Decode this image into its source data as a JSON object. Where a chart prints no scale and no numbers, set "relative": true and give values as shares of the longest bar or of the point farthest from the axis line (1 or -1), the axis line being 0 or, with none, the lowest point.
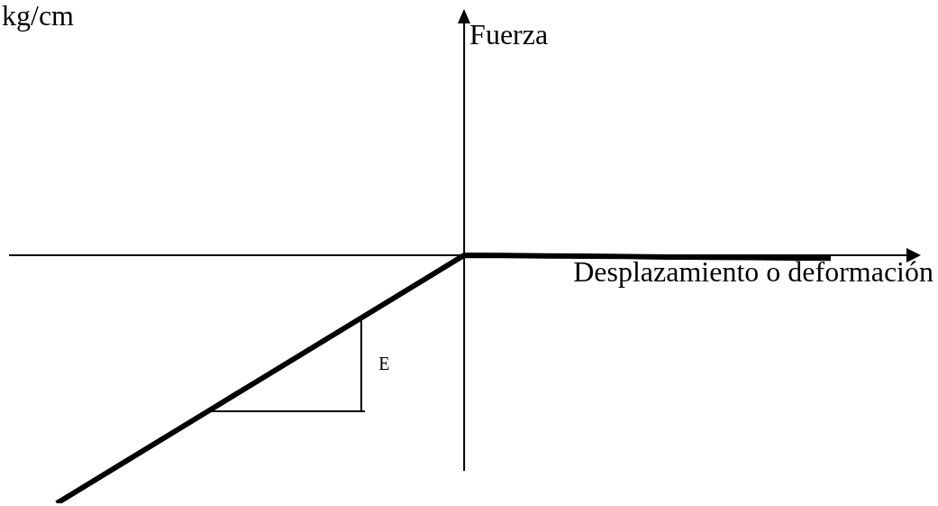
{
  "chart_data": {
    "type": "line",
    "xlabel": "Desplazamiento o deformación",
    "annotations": [
      "kg/cm",
      "Fuerza",
      "E"
    ],
    "relative": true,
    "marker": "none",
    "color": "#000000",
    "categories": [
      null,
      null,
      null,
      null,
      null,
      null,
      null,
      null,
      null,
      null,
      null,
      null,
      null,
      null,
      null,
      null,
      null,
      null,
      null,
      null
    ],
    "values": [
      -1,
      -0.9,
      -0.8,
      -0.7,
      -0.6,
      -0.5,
      -0.4,
      -0.3,
      -0.2,
      -0.1,
      0,
      -0.001,
      -0.003,
      -0.004,
      -0.005,
      -0.007,
      -0.008,
      -0.009,
      -0.011,
      -0.012
    ]
  }
}
